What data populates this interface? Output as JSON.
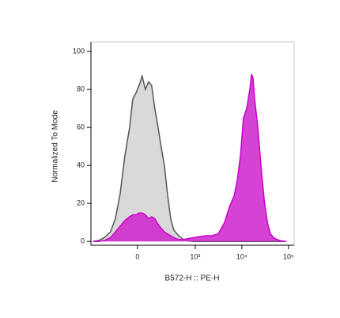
{
  "chart_data": {
    "type": "area",
    "x_label": "B572-H :: PE-H",
    "y_label": "Normalized To Mode",
    "x_scale": "biexponential",
    "x": [
      -511,
      -384,
      -288,
      -204,
      -153,
      -112,
      -77,
      -46,
      -27,
      -9,
      9,
      27,
      46,
      67,
      88,
      112,
      139,
      168,
      204,
      242,
      288,
      339,
      434,
      554,
      702,
      923,
      1218,
      1670,
      2274,
      3109,
      4269,
      5382,
      6832,
      7946,
      9326,
      10834,
      12714,
      14871,
      16078,
      17330,
      18790,
      22040,
      25640,
      30040,
      35260,
      40950,
      48020,
      56140,
      70990,
      89440
    ],
    "series": [
      {
        "color": "#d9d9d9",
        "line_color": "#555555",
        "values": [
          0,
          0.5,
          2,
          5,
          12,
          25,
          45,
          60,
          75,
          78,
          82,
          87,
          80,
          84,
          82,
          70,
          60,
          50,
          40,
          25,
          12,
          6,
          3,
          1,
          0.3,
          0,
          0,
          0,
          0,
          0,
          0,
          0,
          0,
          0,
          0,
          0,
          0,
          0,
          0,
          0,
          0,
          0,
          0,
          0,
          0,
          0,
          0,
          0,
          0,
          0
        ]
      },
      {
        "color": "#cc22cc",
        "line_color": "#cc00cc",
        "values": [
          0,
          0,
          0.5,
          2,
          5,
          8,
          11,
          13,
          14,
          14,
          15,
          15,
          14,
          12,
          13,
          12,
          9,
          7,
          5,
          4,
          3,
          2,
          1,
          1,
          1.5,
          2,
          2.5,
          3,
          3,
          4,
          10,
          18,
          24,
          32,
          45,
          65,
          70,
          80,
          88,
          86,
          75,
          60,
          40,
          22,
          10,
          4,
          2,
          1,
          0.3,
          0
        ]
      }
    ],
    "xlim": [
      -570,
      132000
    ],
    "xticks": [
      0,
      {
        "value": 1000,
        "label": "10³"
      },
      {
        "value": 10000,
        "label": "10⁴"
      },
      {
        "value": 100000,
        "label": "10⁵"
      }
    ],
    "ylim": [
      -2,
      105
    ],
    "yticks": [
      0,
      20,
      40,
      60,
      80,
      100
    ]
  }
}
